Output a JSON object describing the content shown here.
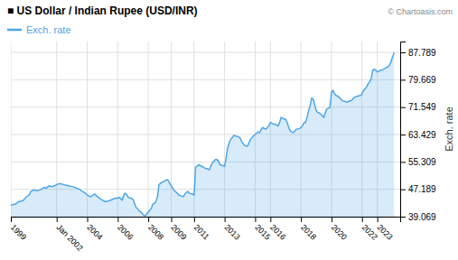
{
  "chart_data": {
    "type": "area",
    "title": "■ US Dollar / Indian Rupee (USD/INR)",
    "ylabel": "Exch. rate",
    "annotations": [
      "© Chartoasis.com"
    ],
    "grid": true,
    "legend": "upper left",
    "xlim": [
      1999.0,
      2024.5
    ],
    "ylim": [
      39.069,
      91.0
    ],
    "xticks": [
      1999,
      {
        "value": 2002.0,
        "label": "Jan 2002"
      },
      2004,
      2006,
      2008,
      {
        "value": 2009.5,
        "label": "2009"
      },
      2011,
      2013,
      2015,
      2016,
      2018,
      2020,
      2022,
      2023
    ],
    "yticks": [
      39.069,
      47.189,
      55.309,
      63.429,
      71.549,
      79.669,
      87.789
    ],
    "x": [
      1999.0,
      1999.3,
      1999.5,
      1999.8,
      2000.0,
      2000.2,
      2000.3,
      2000.5,
      2000.7,
      2000.9,
      2001.0,
      2001.2,
      2001.3,
      2001.5,
      2001.7,
      2001.9,
      2002.0,
      2002.2,
      2002.3,
      2002.5,
      2002.7,
      2002.9,
      2003.0,
      2003.2,
      2003.3,
      2003.5,
      2003.7,
      2003.9,
      2004.0,
      2004.2,
      2004.3,
      2004.5,
      2004.7,
      2004.9,
      2005.0,
      2005.2,
      2005.3,
      2005.5,
      2005.7,
      2005.9,
      2006.0,
      2006.1,
      2006.3,
      2006.4,
      2006.5,
      2006.6,
      2006.7,
      2006.9,
      2007.0,
      2007.1,
      2007.2,
      2007.3,
      2007.4,
      2007.5,
      2007.6,
      2007.7,
      2007.8,
      2008.0,
      2008.2,
      2008.3,
      2008.4,
      2008.5,
      2008.6,
      2008.7,
      2008.8,
      2009.0,
      2009.2,
      2009.3,
      2009.4,
      2009.5,
      2009.6,
      2009.7,
      2009.9,
      2010.0,
      2010.2,
      2010.3,
      2010.4,
      2010.5,
      2010.6,
      2010.7,
      2010.9,
      2011.0,
      2011.05,
      2011.1,
      2011.2,
      2011.3,
      2011.4,
      2011.5,
      2011.6,
      2011.7,
      2011.9,
      2012.0,
      2012.1,
      2012.2,
      2012.3,
      2012.4,
      2012.5,
      2012.6,
      2012.7,
      2012.9,
      2013.0,
      2013.1,
      2013.2,
      2013.3,
      2013.4,
      2013.5,
      2013.6,
      2013.7,
      2013.9,
      2014.0,
      2014.1,
      2014.2,
      2014.3,
      2014.4,
      2014.5,
      2014.6,
      2014.7,
      2014.9,
      2015.0,
      2015.1,
      2015.2,
      2015.3,
      2015.4,
      2015.5,
      2015.6,
      2015.7,
      2015.9,
      2016.0,
      2016.1,
      2016.2,
      2016.3,
      2016.4,
      2016.5,
      2016.6,
      2016.7,
      2016.9,
      2017.0,
      2017.1,
      2017.2,
      2017.3,
      2017.4,
      2017.5,
      2017.6,
      2017.7,
      2017.9,
      2018.0,
      2018.1,
      2018.2,
      2018.3,
      2018.4,
      2018.5,
      2018.6,
      2018.7,
      2018.8,
      2019.0,
      2019.1,
      2019.2,
      2019.3,
      2019.4,
      2019.5,
      2019.6,
      2019.7,
      2019.9,
      2020.0,
      2020.1,
      2020.2,
      2020.3,
      2020.4,
      2020.5,
      2020.6,
      2020.7,
      2020.9,
      2021.0,
      2021.1,
      2021.2,
      2021.3,
      2021.4,
      2021.5,
      2021.6,
      2021.7,
      2021.9,
      2022.0,
      2022.1,
      2022.2,
      2022.3,
      2022.4,
      2022.5,
      2022.6,
      2022.7,
      2022.8,
      2022.9,
      2023.0,
      2023.1,
      2023.2,
      2023.3,
      2023.4,
      2023.5,
      2023.6,
      2023.7,
      2023.8,
      2023.9,
      2024.0,
      2024.05,
      2024.1
    ],
    "series": [
      {
        "name": "Exch. rate",
        "color": "#4da6e8",
        "values": [
          42.5,
          42.8,
          43.5,
          43.8,
          44.9,
          45.5,
          46.5,
          47.0,
          46.8,
          47.0,
          47.2,
          47.8,
          47.5,
          48.2,
          48.0,
          48.3,
          48.6,
          48.9,
          48.8,
          48.5,
          48.3,
          48.1,
          48.0,
          47.8,
          47.5,
          47.2,
          46.5,
          46.0,
          45.5,
          45.0,
          45.2,
          45.8,
          44.9,
          44.2,
          44.0,
          43.5,
          43.6,
          43.9,
          44.3,
          44.6,
          44.5,
          44.8,
          44.0,
          45.5,
          46.0,
          45.5,
          44.8,
          44.5,
          44.2,
          43.0,
          41.8,
          41.5,
          40.8,
          40.5,
          40.0,
          39.5,
          39.3,
          40.5,
          41.5,
          42.8,
          43.0,
          43.5,
          45.0,
          48.5,
          49.0,
          49.5,
          50.0,
          49.8,
          49.0,
          48.3,
          47.5,
          46.8,
          46.0,
          45.5,
          45.2,
          45.0,
          45.8,
          46.3,
          46.5,
          46.0,
          45.8,
          45.5,
          49.0,
          53.8,
          54.0,
          54.5,
          54.2,
          54.0,
          53.8,
          53.5,
          53.2,
          53.0,
          54.0,
          55.0,
          55.5,
          56.0,
          56.0,
          55.5,
          54.5,
          54.2,
          54.0,
          56.5,
          59.5,
          61.0,
          62.0,
          62.5,
          63.2,
          63.0,
          62.8,
          62.5,
          61.5,
          60.8,
          60.3,
          60.0,
          60.0,
          61.0,
          62.0,
          63.0,
          63.5,
          63.8,
          64.2,
          64.0,
          65.0,
          65.5,
          65.2,
          65.0,
          66.0,
          67.0,
          66.8,
          66.5,
          66.5,
          66.2,
          66.0,
          67.0,
          68.5,
          68.0,
          68.0,
          67.0,
          65.5,
          64.5,
          64.2,
          64.0,
          64.5,
          65.0,
          65.2,
          65.5,
          66.0,
          67.0,
          67.0,
          68.5,
          70.5,
          72.0,
          74.2,
          74.0,
          70.5,
          70.0,
          69.8,
          69.5,
          69.0,
          68.5,
          70.0,
          71.0,
          71.5,
          76.0,
          76.5,
          75.5,
          75.0,
          74.8,
          74.5,
          74.0,
          73.5,
          73.2,
          73.0,
          73.2,
          73.4,
          73.5,
          74.0,
          74.5,
          74.6,
          74.8,
          75.0,
          75.5,
          76.5,
          77.0,
          77.5,
          78.5,
          79.0,
          80.0,
          82.5,
          82.8,
          82.5,
          82.0,
          82.2,
          82.5,
          82.5,
          82.8,
          83.0,
          83.3,
          83.5,
          84.0,
          85.0,
          86.5,
          87.0,
          87.789
        ]
      }
    ]
  }
}
